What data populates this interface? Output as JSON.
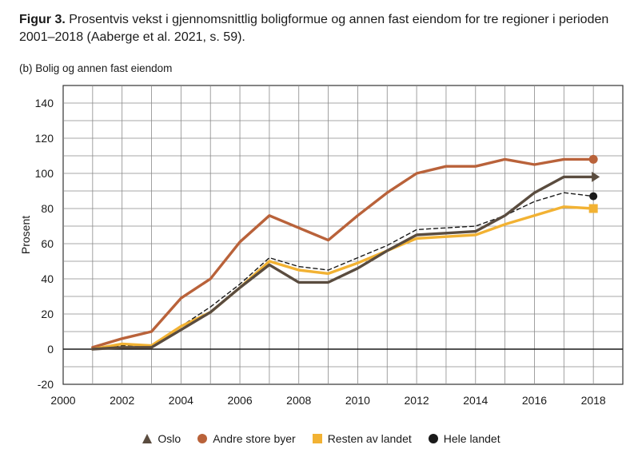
{
  "caption": {
    "label": "Figur 3.",
    "text": "Prosentvis vekst i gjennomsnittlig boligformue og annen fast eiendom for tre regioner i perioden 2001–2018 (Aaberge et al. 2021, s. 59)."
  },
  "subtitle": "(b) Bolig og annen fast eiendom",
  "chart_data": {
    "type": "line",
    "title": "(b) Bolig og annen fast eiendom",
    "xlabel": "",
    "ylabel": "Prosent",
    "xlim": [
      2000,
      2019
    ],
    "ylim": [
      -20,
      150
    ],
    "xticks": [
      2000,
      2002,
      2004,
      2006,
      2008,
      2010,
      2012,
      2014,
      2016,
      2018
    ],
    "yticks": [
      -20,
      0,
      20,
      40,
      60,
      80,
      100,
      120,
      140
    ],
    "grid": true,
    "legend_position": "bottom",
    "x": [
      2001,
      2002,
      2003,
      2004,
      2005,
      2006,
      2007,
      2008,
      2009,
      2010,
      2011,
      2012,
      2013,
      2014,
      2015,
      2016,
      2017,
      2018
    ],
    "series": [
      {
        "name": "Oslo",
        "color": "#5a4c3f",
        "marker": "triangle",
        "values": [
          0,
          1,
          1,
          11,
          21,
          35,
          48,
          38,
          38,
          46,
          56,
          65,
          66,
          67,
          76,
          89,
          98,
          98
        ]
      },
      {
        "name": "Andre store byer",
        "color": "#b9623a",
        "marker": "circle",
        "values": [
          1,
          6,
          10,
          29,
          40,
          61,
          76,
          69,
          62,
          76,
          89,
          100,
          104,
          104,
          108,
          105,
          108,
          108
        ]
      },
      {
        "name": "Resten av landet",
        "color": "#f2b233",
        "marker": "square",
        "values": [
          0,
          3,
          2,
          13,
          21,
          35,
          50,
          45,
          43,
          49,
          56,
          63,
          64,
          65,
          71,
          76,
          81,
          80
        ]
      },
      {
        "name": "Hele landet",
        "color": "#1a1a1a",
        "marker": "dot",
        "dashed": true,
        "values": [
          0,
          2,
          2,
          13,
          24,
          37,
          52,
          47,
          45,
          52,
          59,
          68,
          69,
          70,
          76,
          84,
          89,
          87
        ]
      }
    ]
  }
}
